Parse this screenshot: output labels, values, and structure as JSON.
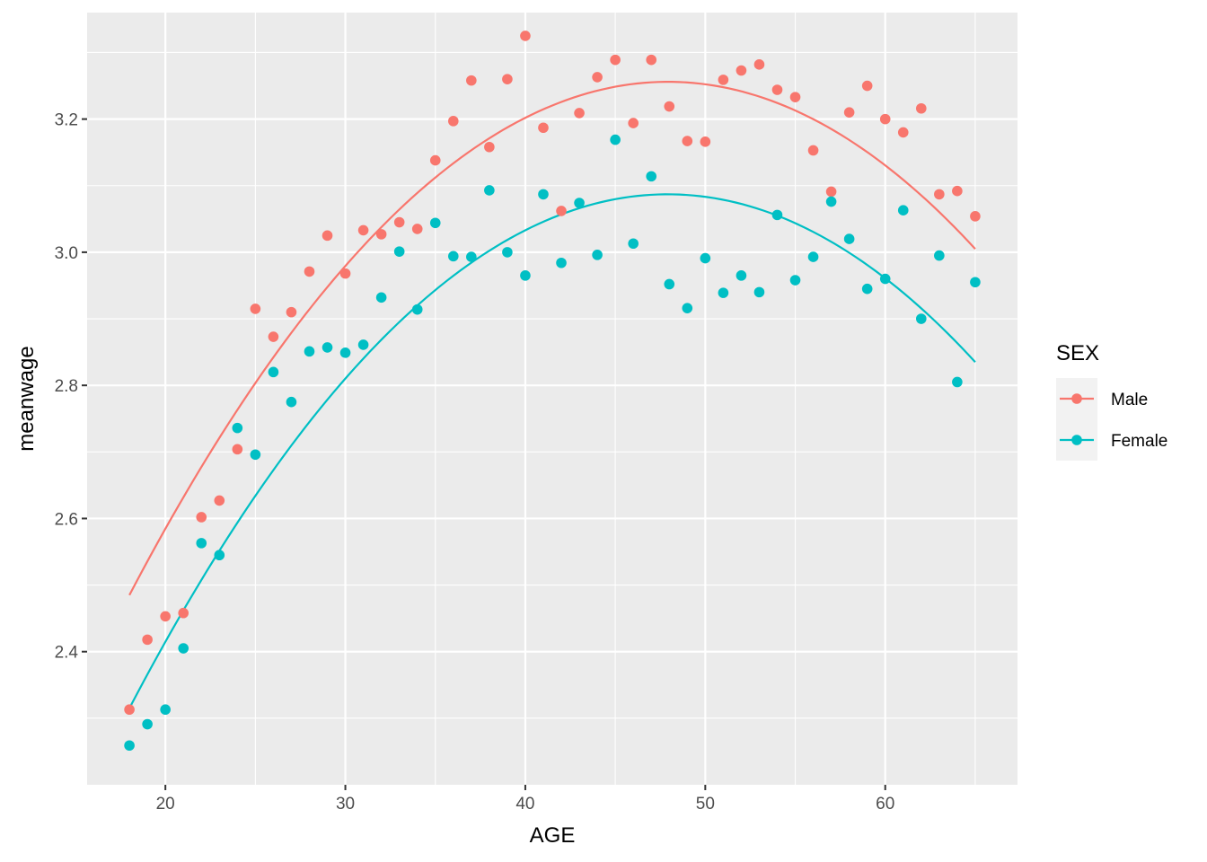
{
  "chart_data": {
    "type": "scatter",
    "title": "",
    "xlabel": "AGE",
    "ylabel": "meanwage",
    "xlim": [
      15.65,
      67.35
    ],
    "ylim": [
      2.2,
      3.36
    ],
    "x_ticks": [
      20,
      30,
      40,
      50,
      60
    ],
    "y_ticks": [
      2.4,
      2.6,
      2.8,
      3.0,
      3.2
    ],
    "x_tick_labels": [
      "20",
      "30",
      "40",
      "50",
      "60"
    ],
    "y_tick_labels": [
      "2.4",
      "2.6",
      "2.8",
      "3.0",
      "3.2"
    ],
    "grid": true,
    "panel_background": "#ebebeb",
    "legend": {
      "title": "SEX",
      "position": "right"
    },
    "x": [
      18,
      19,
      20,
      21,
      22,
      23,
      24,
      25,
      26,
      27,
      28,
      29,
      30,
      31,
      32,
      33,
      34,
      35,
      36,
      37,
      38,
      39,
      40,
      41,
      42,
      43,
      44,
      45,
      46,
      47,
      48,
      49,
      50,
      51,
      52,
      53,
      54,
      55,
      56,
      57,
      58,
      59,
      60,
      61,
      62,
      63,
      64,
      65
    ],
    "series": [
      {
        "name": "Male",
        "color": "#f8766d",
        "points": [
          2.313,
          2.418,
          2.453,
          2.458,
          2.602,
          2.627,
          2.704,
          2.915,
          2.873,
          2.91,
          2.971,
          3.025,
          2.968,
          3.033,
          3.027,
          3.045,
          3.035,
          3.138,
          3.197,
          3.258,
          3.158,
          3.26,
          3.325,
          3.187,
          3.062,
          3.209,
          3.263,
          3.289,
          3.194,
          3.289,
          3.219,
          3.167,
          3.166,
          3.259,
          3.273,
          3.282,
          3.244,
          3.233,
          3.153,
          3.091,
          3.21,
          3.25,
          3.2,
          3.18,
          3.216,
          3.087,
          3.092,
          3.054
        ],
        "fit": {
          "x_range": [
            18,
            65
          ],
          "peak_age": 47.9,
          "peak_value": 3.256,
          "value_at_18": 2.485,
          "value_at_65": 3.005
        }
      },
      {
        "name": "Female",
        "color": "#00bfc4",
        "points": [
          2.259,
          2.291,
          2.313,
          2.405,
          2.563,
          2.545,
          2.736,
          2.696,
          2.82,
          2.775,
          2.851,
          2.857,
          2.849,
          2.861,
          2.932,
          3.001,
          2.914,
          3.044,
          2.994,
          2.993,
          3.093,
          3.0,
          2.965,
          3.087,
          2.984,
          3.074,
          2.996,
          3.169,
          3.013,
          3.114,
          2.952,
          2.916,
          2.991,
          2.939,
          2.965,
          2.94,
          3.056,
          2.958,
          2.993,
          3.076,
          3.02,
          2.945,
          2.96,
          3.063,
          2.9,
          2.995,
          2.805,
          2.955
        ],
        "fit": {
          "x_range": [
            18,
            65
          ],
          "peak_age": 48.0,
          "peak_value": 3.087,
          "value_at_18": 2.315,
          "value_at_65": 2.835
        }
      }
    ]
  }
}
